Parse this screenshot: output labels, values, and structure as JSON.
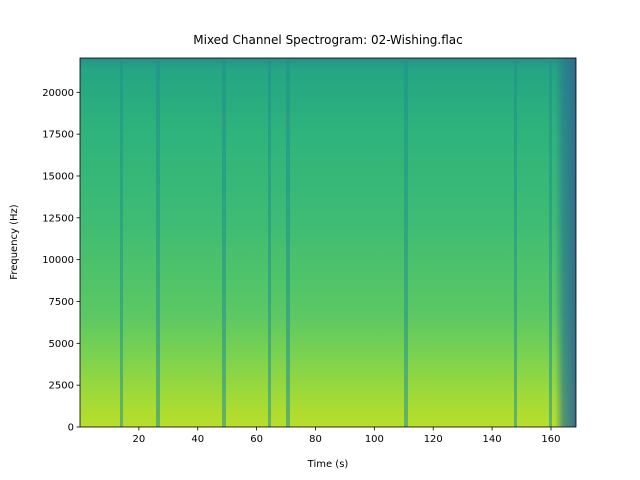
{
  "chart_data": {
    "type": "spectrogram",
    "title": "Mixed Channel Spectrogram: 02-Wishing.flac",
    "xlabel": "Time (s)",
    "ylabel": "Frequency (Hz)",
    "xlim": [
      0,
      168.5
    ],
    "xticks": [
      20,
      40,
      60,
      80,
      100,
      120,
      140,
      160
    ],
    "ylim": [
      0,
      22050
    ],
    "yticks": [
      0,
      2500,
      5000,
      7500,
      10000,
      12500,
      15000,
      17500,
      20000
    ]
  }
}
